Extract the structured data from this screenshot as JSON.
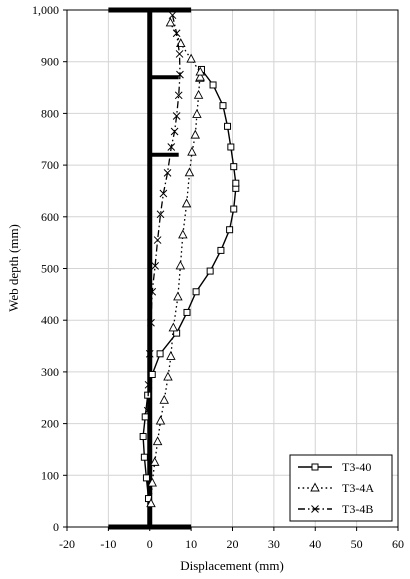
{
  "chart_data": {
    "type": "line",
    "title": "",
    "xlabel": "Displacement (mm)",
    "ylabel": "Web depth (mm)",
    "xlim": [
      -20,
      60
    ],
    "ylim": [
      0,
      1000
    ],
    "x_ticks": [
      -20,
      -10,
      0,
      10,
      20,
      30,
      40,
      50,
      60
    ],
    "y_ticks": [
      0,
      100,
      200,
      300,
      400,
      500,
      600,
      700,
      800,
      900,
      1000
    ],
    "x_tick_labels": [
      "-20",
      "-10",
      "0",
      "10",
      "20",
      "30",
      "40",
      "50",
      "60"
    ],
    "y_tick_labels": [
      "0",
      "100",
      "200",
      "300",
      "400",
      "500",
      "600",
      "700",
      "800",
      "900",
      "1,000"
    ],
    "grid": true,
    "legend_position": "bottom-right",
    "annotations": {
      "web_section": {
        "x": 0,
        "y_range": [
          0,
          1000
        ]
      },
      "flanges": [
        {
          "y": 1000,
          "x_range": [
            -10,
            10
          ]
        },
        {
          "y": 0,
          "x_range": [
            -10,
            10
          ]
        }
      ],
      "stiffeners": [
        {
          "y": 870,
          "x_range": [
            0,
            7
          ]
        },
        {
          "y": 720,
          "x_range": [
            0,
            7
          ]
        }
      ]
    },
    "series": [
      {
        "name": "T3-40",
        "style": "solid",
        "marker": "square",
        "x": [
          -0.3,
          -0.8,
          -1.3,
          -1.6,
          -1.1,
          -0.5,
          0.6,
          2.5,
          6.5,
          9,
          11.2,
          14.6,
          17.2,
          19.3,
          20.3,
          20.8,
          20.8,
          20.3,
          19.6,
          18.8,
          17.7,
          15.3,
          12.5
        ],
        "y": [
          55,
          95,
          135,
          175,
          213,
          255,
          295,
          335,
          375,
          415,
          455,
          495,
          535,
          575,
          615,
          655,
          665,
          697,
          735,
          775,
          815,
          855,
          885
        ]
      },
      {
        "name": "T3-4A",
        "style": "dotted",
        "marker": "triangle",
        "x": [
          0.3,
          0.6,
          1.2,
          1.9,
          2.6,
          3.5,
          4.4,
          5.1,
          5.7,
          6.8,
          7.4,
          8,
          8.9,
          9.6,
          10.2,
          11,
          11.4,
          11.8,
          12.1,
          12.2,
          12.2,
          10,
          7.5,
          5
        ],
        "y": [
          45,
          85,
          125,
          165,
          205,
          245,
          290,
          330,
          385,
          445,
          505,
          565,
          625,
          685,
          725,
          758,
          798,
          835,
          868,
          870,
          880,
          905,
          935,
          975
        ]
      },
      {
        "name": "T3-4B",
        "style": "dashdot",
        "marker": "x",
        "x": [
          -0.5,
          -0.3,
          0,
          0.3,
          0.6,
          1.3,
          1.9,
          2.6,
          3.3,
          4.3,
          5.2,
          6,
          6.5,
          7,
          7.3,
          7.2,
          6.5,
          5.5
        ],
        "y": [
          225,
          275,
          335,
          395,
          455,
          505,
          555,
          605,
          645,
          685,
          735,
          765,
          795,
          835,
          875,
          915,
          955,
          990
        ]
      }
    ]
  }
}
